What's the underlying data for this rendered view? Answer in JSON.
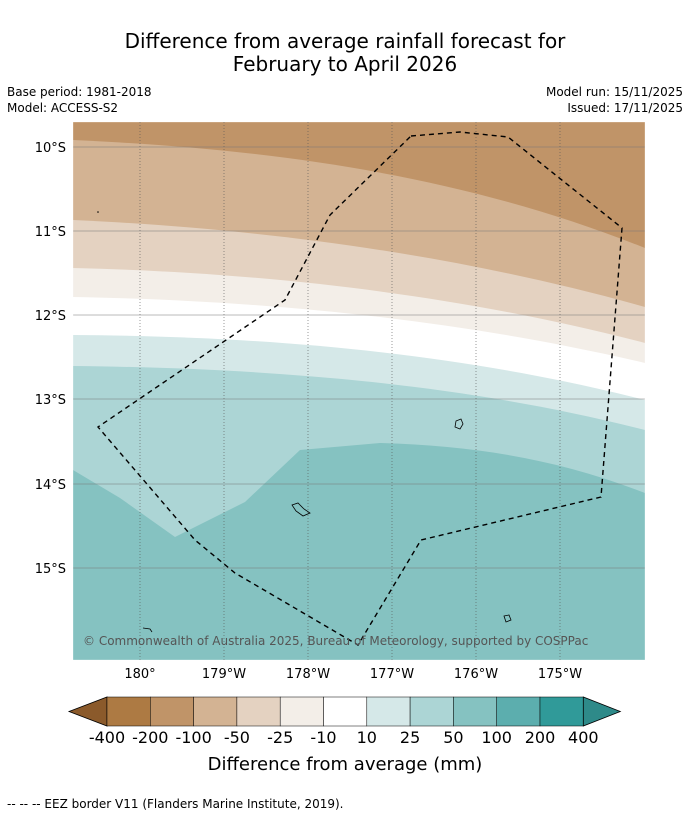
{
  "title": {
    "line1": "Difference from average rainfall forecast for",
    "line2": "February to April 2026"
  },
  "meta": {
    "base_period": "Base period: 1981-2018",
    "model": "Model: ACCESS-S2",
    "model_run": "Model run: 15/11/2025",
    "issued": "Issued: 17/11/2025"
  },
  "map": {
    "lat_labels": [
      "10°S",
      "11°S",
      "12°S",
      "13°S",
      "14°S",
      "15°S"
    ],
    "lon_labels": [
      "180°",
      "179°W",
      "178°W",
      "177°W",
      "176°W",
      "175°W"
    ],
    "copyright": "© Commonwealth of Australia 2025, Bureau of Meteorology, supported by COSPPac"
  },
  "colorbar": {
    "labels": [
      "-400",
      "-200",
      "-100",
      "-50",
      "-25",
      "-10",
      "10",
      "25",
      "50",
      "100",
      "200",
      "400"
    ],
    "colors": [
      "#8b5a2b",
      "#ad7a43",
      "#c09468",
      "#d3b393",
      "#e4d2c1",
      "#f3eee8",
      "#ffffff",
      "#d5e8e8",
      "#acd5d5",
      "#85c2c1",
      "#5caeae",
      "#309a99",
      "#2e8a89"
    ],
    "title": "Difference from average (mm)"
  },
  "footnote": "-- -- -- EEZ border V11 (Flanders Marine Institute, 2019)."
}
